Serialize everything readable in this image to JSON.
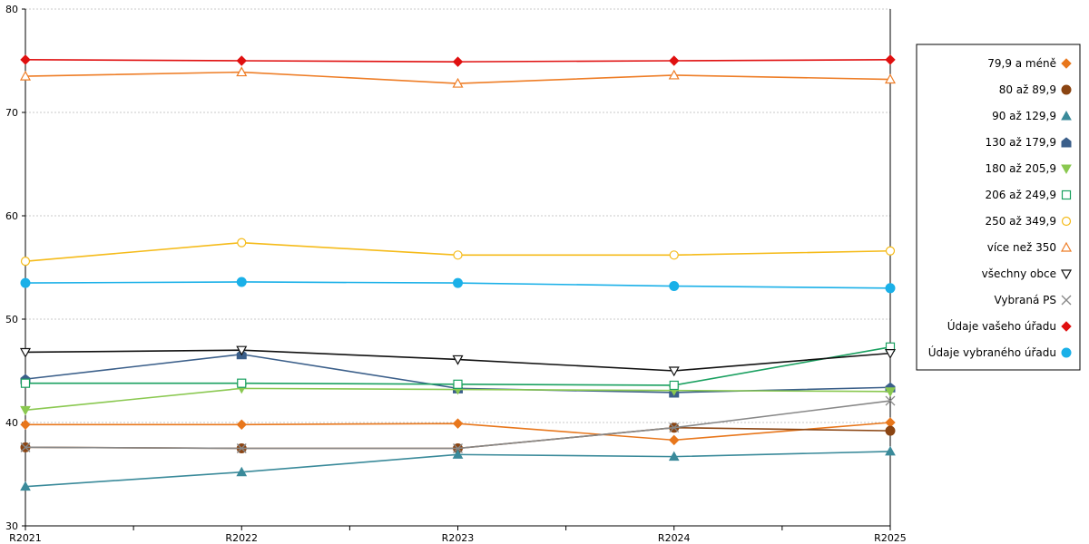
{
  "chart_data": {
    "type": "line",
    "title": "",
    "xlabel": "",
    "ylabel": "",
    "categories": [
      "R2021",
      "R2022",
      "R2023",
      "R2024",
      "R2025"
    ],
    "ylim": [
      30,
      80
    ],
    "yticks": [
      30,
      40,
      50,
      60,
      70,
      80
    ],
    "grid": true,
    "legend_position": "right",
    "series": [
      {
        "name": "79,9 a méně",
        "color": "#e8771c",
        "marker": "diamond-filled",
        "values": [
          39.8,
          39.8,
          39.9,
          38.3,
          40.0
        ]
      },
      {
        "name": "80 až 89,9",
        "color": "#8b4513",
        "marker": "circle-filled",
        "values": [
          37.6,
          37.5,
          37.5,
          39.5,
          39.2
        ]
      },
      {
        "name": "90 až 129,9",
        "color": "#3a8a9a",
        "marker": "triangle-filled",
        "values": [
          33.8,
          35.2,
          36.9,
          36.7,
          37.2
        ]
      },
      {
        "name": "130 až 179,9",
        "color": "#3b5f8a",
        "marker": "house-filled",
        "values": [
          44.2,
          46.6,
          43.3,
          42.9,
          43.4
        ]
      },
      {
        "name": "180 až 205,9",
        "color": "#8ac850",
        "marker": "triangle-down-filled",
        "values": [
          41.2,
          43.3,
          43.2,
          43.1,
          43.0
        ]
      },
      {
        "name": "206 až 249,9",
        "color": "#1aa060",
        "marker": "square-open",
        "values": [
          43.8,
          43.8,
          43.7,
          43.6,
          47.3
        ]
      },
      {
        "name": "250 až 349,9",
        "color": "#f5bb1a",
        "marker": "circle-open",
        "values": [
          55.6,
          57.4,
          56.2,
          56.2,
          56.6
        ]
      },
      {
        "name": "více než 350",
        "color": "#ee7d26",
        "marker": "triangle-open",
        "values": [
          73.5,
          73.9,
          72.8,
          73.6,
          73.2
        ]
      },
      {
        "name": "všechny obce",
        "color": "#111111",
        "marker": "triangle-down-open",
        "values": [
          46.8,
          47.0,
          46.1,
          45.0,
          46.7
        ]
      },
      {
        "name": "Vybraná PS",
        "color": "#888888",
        "marker": "cross",
        "values": [
          37.6,
          37.5,
          37.5,
          39.5,
          42.1
        ]
      },
      {
        "name": "Údaje vašeho úřadu",
        "color": "#e01010",
        "marker": "diamond-filled",
        "values": [
          75.1,
          75.0,
          74.9,
          75.0,
          75.1
        ]
      },
      {
        "name": "Údaje vybraného úřadu",
        "color": "#1ab0e8",
        "marker": "circle-filled",
        "values": [
          53.5,
          53.6,
          53.5,
          53.2,
          53.0
        ]
      }
    ]
  }
}
